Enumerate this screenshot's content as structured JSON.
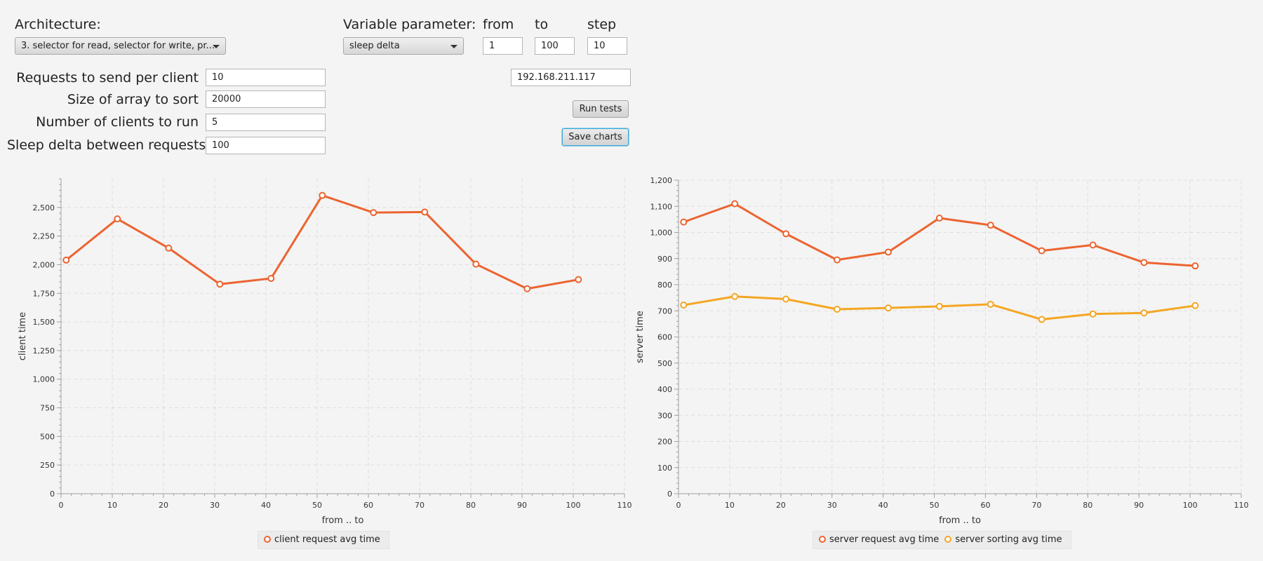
{
  "controls": {
    "architecture_label": "Architecture:",
    "architecture_value": "3. selector for read, selector for write, pr...",
    "variable_label": "Variable parameter:",
    "variable_value": "sleep delta",
    "from_label": "from",
    "to_label": "to",
    "step_label": "step",
    "from_value": "1",
    "to_value": "100",
    "step_value": "10",
    "requests_label": "Requests to send per client",
    "requests_value": "10",
    "array_label": "Size of array to sort",
    "array_value": "20000",
    "clients_label": "Number of clients to run",
    "clients_value": "5",
    "sleep_label": "Sleep delta between requests",
    "sleep_value": "100",
    "ip_value": "192.168.211.117",
    "run_button": "Run tests",
    "save_button": "Save charts"
  },
  "colors": {
    "series_primary": "#ec6431",
    "series_secondary": "#f5a623",
    "grid": "#dedede",
    "axis": "#a0a0a0"
  },
  "chart_data": [
    {
      "type": "line",
      "xlabel": "from .. to",
      "ylabel": "client time",
      "xlim": [
        0,
        110
      ],
      "ylim": [
        0,
        2750
      ],
      "x_ticks": [
        "0",
        "10",
        "20",
        "30",
        "40",
        "50",
        "60",
        "70",
        "80",
        "90",
        "100",
        "110"
      ],
      "y_ticks": [
        "0",
        "250",
        "500",
        "750",
        "1,000",
        "1,250",
        "1,500",
        "1,750",
        "2,000",
        "2,250",
        "2,500"
      ],
      "grid": true,
      "legend_position": "bottom",
      "series": [
        {
          "name": "client request avg time",
          "color": "#ec6431",
          "x": [
            1,
            11,
            21,
            31,
            41,
            51,
            61,
            71,
            81,
            91,
            101
          ],
          "y": [
            2040,
            2400,
            2145,
            1830,
            1880,
            2605,
            2455,
            2460,
            2005,
            1790,
            1870
          ]
        }
      ]
    },
    {
      "type": "line",
      "xlabel": "from .. to",
      "ylabel": "server time",
      "xlim": [
        0,
        110
      ],
      "ylim": [
        0,
        1200
      ],
      "x_ticks": [
        "0",
        "10",
        "20",
        "30",
        "40",
        "50",
        "60",
        "70",
        "80",
        "90",
        "100",
        "110"
      ],
      "y_ticks": [
        "0",
        "100",
        "200",
        "300",
        "400",
        "500",
        "600",
        "700",
        "800",
        "900",
        "1,000",
        "1,100",
        "1,200"
      ],
      "grid": true,
      "legend_position": "bottom",
      "series": [
        {
          "name": "server request avg time",
          "color": "#ec6431",
          "x": [
            1,
            11,
            21,
            31,
            41,
            51,
            61,
            71,
            81,
            91,
            101
          ],
          "y": [
            1040,
            1110,
            995,
            895,
            925,
            1055,
            1028,
            930,
            952,
            885,
            872
          ]
        },
        {
          "name": "server sorting avg time",
          "color": "#f5a623",
          "x": [
            1,
            11,
            21,
            31,
            41,
            51,
            61,
            71,
            81,
            91,
            101
          ],
          "y": [
            722,
            755,
            745,
            706,
            711,
            717,
            725,
            667,
            688,
            692,
            720
          ]
        }
      ]
    }
  ]
}
